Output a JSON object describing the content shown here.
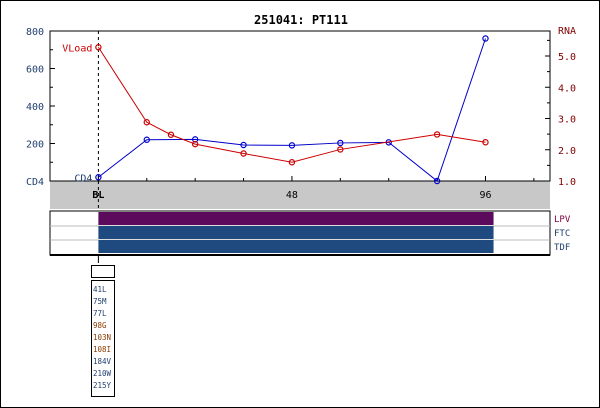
{
  "chart_data": {
    "type": "line",
    "title": "251041: PT111",
    "x_tick_labels": [
      "BL",
      "48",
      "96"
    ],
    "x_ticks": [
      0,
      48,
      96
    ],
    "xlim": [
      -12,
      112
    ],
    "left_axis": {
      "ticks": [
        "800",
        "600",
        "400",
        "200",
        "CD4"
      ],
      "ylim": [
        0,
        800
      ]
    },
    "right_axis": {
      "label": "RNA",
      "ticks": [
        "5.0",
        "4.0",
        "3.0",
        "2.0",
        "1.0"
      ],
      "ylim": [
        1.0,
        5.8
      ]
    },
    "series": [
      {
        "name": "CD4",
        "axis": "left",
        "color": "#0000cc",
        "x": [
          0,
          12,
          24,
          36,
          48,
          60,
          72,
          84,
          96
        ],
        "values": [
          20,
          220,
          222,
          192,
          190,
          203,
          206,
          0,
          760
        ]
      },
      {
        "name": "VLoad",
        "axis": "right",
        "color": "#cc0000",
        "x": [
          0,
          12,
          18,
          24,
          36,
          48,
          60,
          84,
          96
        ],
        "values": [
          5.28,
          2.88,
          2.48,
          2.18,
          1.88,
          1.6,
          2.01,
          2.49,
          2.24
        ]
      }
    ],
    "baseline_marker": "BL"
  },
  "drugs": [
    {
      "name": "LPV",
      "color": "#5c0a5c",
      "label_color": "#800040",
      "start": 0,
      "end": 98
    },
    {
      "name": "FTC",
      "color": "#1f4a80",
      "label_color": "#1f3f6f",
      "start": 0,
      "end": 98
    },
    {
      "name": "TDF",
      "color": "#1f4a80",
      "label_color": "#1f3f6f",
      "start": 0,
      "end": 98
    }
  ],
  "mutations": [
    {
      "label": "41L",
      "color": "#1f3f6f"
    },
    {
      "label": "75M",
      "color": "#1f3f6f"
    },
    {
      "label": "77L",
      "color": "#1f3f6f"
    },
    {
      "label": "98G",
      "color": "#8b3a00"
    },
    {
      "label": "103N",
      "color": "#8b3a00"
    },
    {
      "label": "108I",
      "color": "#8b3a00"
    },
    {
      "label": "184V",
      "color": "#1f3f6f"
    },
    {
      "label": "210W",
      "color": "#1f3f6f"
    },
    {
      "label": "215Y",
      "color": "#1f3f6f"
    }
  ]
}
